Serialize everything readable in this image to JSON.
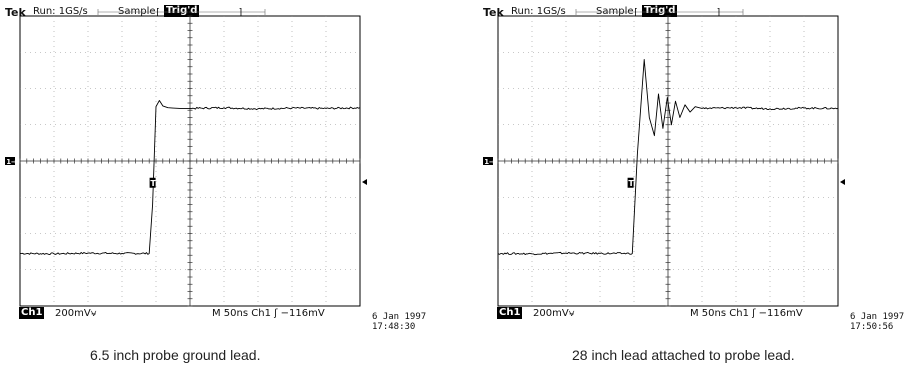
{
  "scopes": [
    {
      "brand": "Tek",
      "run_text": "Run: 1GS/s",
      "mode": "Sample",
      "trigger_status": "Trig'd",
      "trigger_marker": "T",
      "channel_badge": "Ch1",
      "volts_per_div": "200mV",
      "timebase": "M  50ns  Ch1  ʃ  −116mV",
      "date": "6 Jan 1997",
      "time": "17:48:30",
      "caption": "6.5 inch probe ground lead.",
      "chart_data": {
        "type": "line",
        "title": "",
        "xlabel": "",
        "ylabel": "",
        "x_divisions": 10,
        "y_divisions": 8,
        "x_units": "divisions (50ns/div)",
        "y_units": "divisions (200mV/div)",
        "grid": true,
        "series": [
          {
            "name": "",
            "x": [
              0.0,
              1.0,
              2.0,
              3.0,
              3.8,
              3.9,
              4.0,
              4.1,
              4.2,
              4.35,
              4.5,
              4.7,
              5.0,
              6.0,
              7.0,
              8.0,
              9.0,
              10.0
            ],
            "y": [
              -2.55,
              -2.56,
              -2.54,
              -2.55,
              -2.55,
              -1.2,
              1.5,
              1.67,
              1.52,
              1.47,
              1.46,
              1.45,
              1.45,
              1.47,
              1.44,
              1.46,
              1.45,
              1.47
            ]
          }
        ]
      }
    },
    {
      "brand": "Tek",
      "run_text": "Run: 1GS/s",
      "mode": "Sample",
      "trigger_status": "Trig'd",
      "trigger_marker": "T",
      "channel_badge": "Ch1",
      "volts_per_div": "200mV",
      "timebase": "M  50ns  Ch1  ʃ  −116mV",
      "date": "6 Jan 1997",
      "time": "17:50:56",
      "caption": "28 inch lead attached to probe lead.",
      "chart_data": {
        "type": "line",
        "title": "",
        "xlabel": "",
        "ylabel": "",
        "x_divisions": 10,
        "y_divisions": 8,
        "x_units": "divisions (50ns/div)",
        "y_units": "divisions (200mV/div)",
        "grid": true,
        "series": [
          {
            "name": "",
            "x": [
              0.0,
              1.0,
              2.0,
              3.0,
              3.95,
              4.1,
              4.3,
              4.45,
              4.6,
              4.72,
              4.85,
              4.98,
              5.1,
              5.22,
              5.35,
              5.5,
              5.65,
              5.8,
              6.0,
              7.0,
              8.0,
              9.0,
              10.0
            ],
            "y": [
              -2.55,
              -2.56,
              -2.54,
              -2.55,
              -2.55,
              0.2,
              2.8,
              1.2,
              0.7,
              1.85,
              0.9,
              1.75,
              1.0,
              1.65,
              1.2,
              1.55,
              1.35,
              1.5,
              1.45,
              1.47,
              1.44,
              1.46,
              1.45
            ]
          }
        ]
      }
    }
  ]
}
